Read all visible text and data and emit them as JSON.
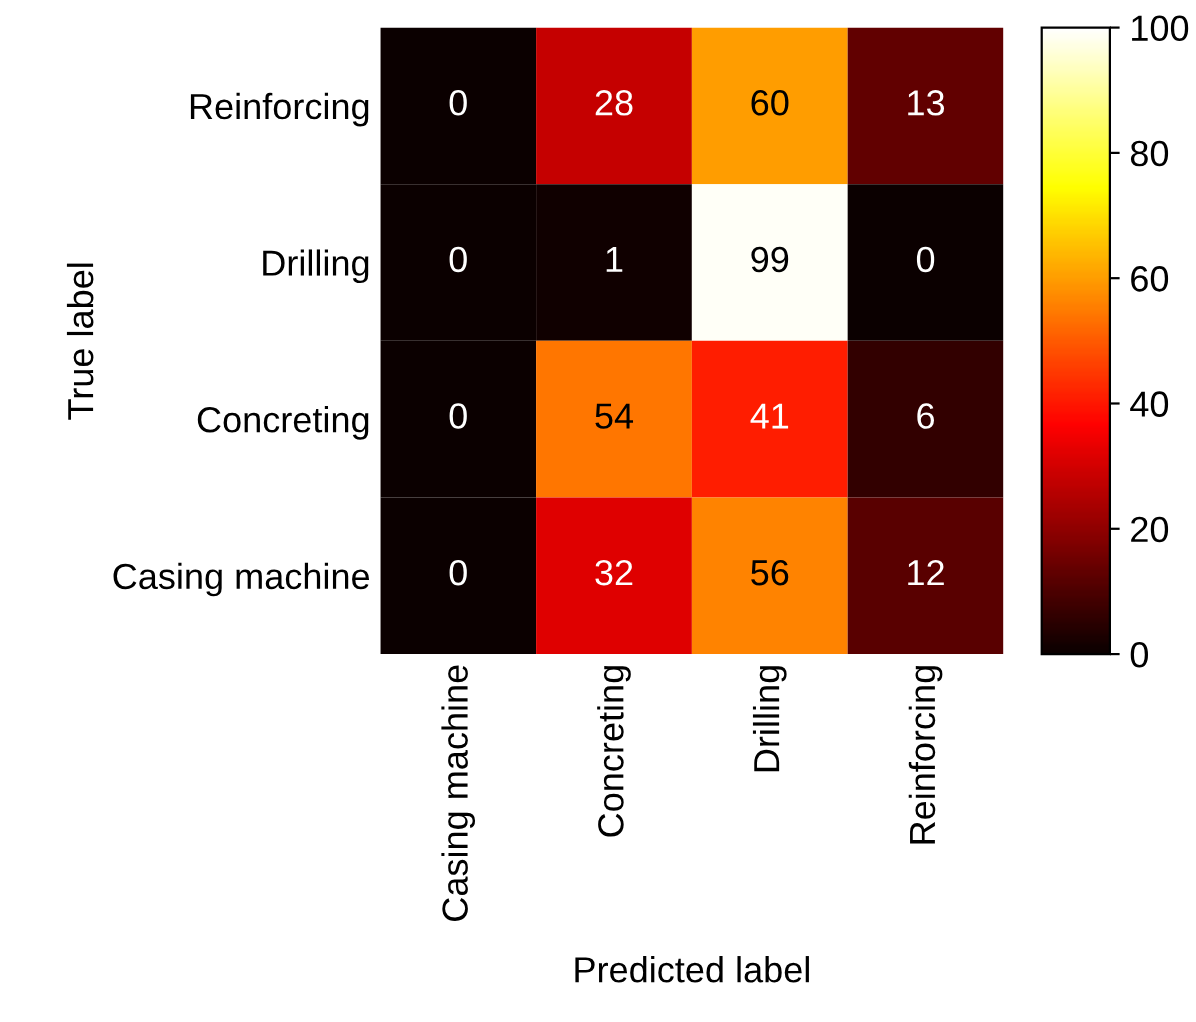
{
  "chart_data": {
    "type": "heatmap",
    "xlabel": "Predicted label",
    "ylabel": "True label",
    "categories": [
      "Casing machine",
      "Concreting",
      "Drilling",
      "Reinforcing"
    ],
    "y_categories": [
      "Reinforcing",
      "Drilling",
      "Concreting",
      "Casing machine"
    ],
    "cells": [
      [
        0,
        28,
        60,
        13
      ],
      [
        0,
        1,
        99,
        0
      ],
      [
        0,
        54,
        41,
        6
      ],
      [
        0,
        32,
        56,
        12
      ]
    ],
    "clim": [
      0,
      100
    ],
    "cticks": [
      0,
      20,
      40,
      60,
      80,
      100
    ],
    "data_labels": true
  }
}
